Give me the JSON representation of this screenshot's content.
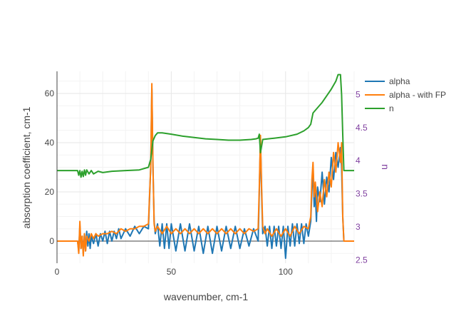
{
  "chart_data": {
    "type": "line",
    "xlabel": "wavenumber, cm-1",
    "ylabel": "absorption coefficient, cm-1",
    "y2label": "n",
    "xlim": [
      0,
      130
    ],
    "ylim": [
      -9,
      69
    ],
    "y2lim": [
      2.45,
      5.35
    ],
    "x_ticks": [
      0,
      50,
      100
    ],
    "y_ticks": [
      0,
      20,
      40,
      60
    ],
    "y2_ticks": [
      2.5,
      3,
      3.5,
      4,
      4.5,
      5
    ],
    "grid": true,
    "legend_position": "top-right",
    "series": [
      {
        "name": "alpha",
        "axis": "y",
        "color": "#1f77b4",
        "points": [
          [
            0,
            0
          ],
          [
            9,
            0
          ],
          [
            9.5,
            -4
          ],
          [
            10,
            6
          ],
          [
            10.5,
            -3
          ],
          [
            11,
            2
          ],
          [
            11.5,
            -5
          ],
          [
            12,
            3
          ],
          [
            12.5,
            -4
          ],
          [
            13,
            4
          ],
          [
            13.5,
            -2
          ],
          [
            14,
            3
          ],
          [
            14.5,
            -3
          ],
          [
            15,
            2
          ],
          [
            16,
            -1
          ],
          [
            17,
            3
          ],
          [
            18,
            -2
          ],
          [
            19,
            3
          ],
          [
            20,
            0
          ],
          [
            21,
            4
          ],
          [
            22,
            -1
          ],
          [
            23,
            4
          ],
          [
            24,
            0
          ],
          [
            25,
            4
          ],
          [
            26,
            1
          ],
          [
            27,
            5
          ],
          [
            28,
            1
          ],
          [
            30,
            5
          ],
          [
            32,
            2
          ],
          [
            34,
            6
          ],
          [
            36,
            3
          ],
          [
            38,
            6
          ],
          [
            40,
            5
          ],
          [
            41,
            30
          ],
          [
            41.5,
            62
          ],
          [
            42,
            30
          ],
          [
            42.5,
            8
          ],
          [
            43,
            3
          ],
          [
            44,
            7
          ],
          [
            45,
            -2
          ],
          [
            46,
            7
          ],
          [
            47,
            -3
          ],
          [
            48,
            7
          ],
          [
            49,
            -3
          ],
          [
            50,
            7
          ],
          [
            52,
            -4
          ],
          [
            54,
            7
          ],
          [
            56,
            -4
          ],
          [
            58,
            7
          ],
          [
            60,
            -4
          ],
          [
            62,
            6
          ],
          [
            64,
            -5
          ],
          [
            66,
            6
          ],
          [
            68,
            -5
          ],
          [
            70,
            6
          ],
          [
            72,
            -4
          ],
          [
            74,
            6
          ],
          [
            76,
            -3
          ],
          [
            78,
            6
          ],
          [
            80,
            -3
          ],
          [
            82,
            5
          ],
          [
            84,
            -2
          ],
          [
            86,
            5
          ],
          [
            88,
            0
          ],
          [
            88.5,
            20
          ],
          [
            89,
            41
          ],
          [
            89.5,
            20
          ],
          [
            90,
            3
          ],
          [
            91,
            6
          ],
          [
            92,
            -2
          ],
          [
            93,
            6
          ],
          [
            94,
            -3
          ],
          [
            95,
            6
          ],
          [
            96,
            -2
          ],
          [
            97,
            6
          ],
          [
            98,
            -3
          ],
          [
            99,
            6
          ],
          [
            100,
            -7
          ],
          [
            101,
            6
          ],
          [
            102,
            -2
          ],
          [
            103,
            7
          ],
          [
            104,
            -2
          ],
          [
            105,
            7
          ],
          [
            106,
            -1
          ],
          [
            107,
            7
          ],
          [
            108,
            -1
          ],
          [
            109,
            7
          ],
          [
            110,
            2
          ],
          [
            111,
            8
          ],
          [
            111.5,
            20
          ],
          [
            112,
            30
          ],
          [
            112.5,
            14
          ],
          [
            113,
            20
          ],
          [
            113.5,
            8
          ],
          [
            114,
            22
          ],
          [
            115,
            16
          ],
          [
            116,
            28
          ],
          [
            117,
            15
          ],
          [
            118,
            26
          ],
          [
            119,
            20
          ],
          [
            120,
            34
          ],
          [
            121,
            25
          ],
          [
            122,
            36
          ],
          [
            123,
            30
          ],
          [
            124,
            38
          ],
          [
            124.5,
            30
          ],
          [
            125,
            10
          ],
          [
            125.5,
            0
          ],
          [
            130,
            0
          ]
        ]
      },
      {
        "name": "alpha - with FP",
        "axis": "y",
        "color": "#ff7f0e",
        "points": [
          [
            0,
            0
          ],
          [
            9,
            0
          ],
          [
            9.5,
            -5
          ],
          [
            10,
            8
          ],
          [
            10.5,
            -3
          ],
          [
            11,
            2
          ],
          [
            11.5,
            -6
          ],
          [
            12,
            3
          ],
          [
            12.5,
            -4
          ],
          [
            13,
            2
          ],
          [
            14,
            0
          ],
          [
            15,
            3
          ],
          [
            16,
            1
          ],
          [
            17,
            3
          ],
          [
            18,
            2
          ],
          [
            20,
            3
          ],
          [
            22,
            3
          ],
          [
            24,
            4
          ],
          [
            26,
            3
          ],
          [
            28,
            5
          ],
          [
            30,
            4
          ],
          [
            32,
            5
          ],
          [
            34,
            5
          ],
          [
            36,
            6
          ],
          [
            38,
            6
          ],
          [
            40,
            7
          ],
          [
            41,
            30
          ],
          [
            41.5,
            64
          ],
          [
            42,
            30
          ],
          [
            42.5,
            7
          ],
          [
            43,
            4
          ],
          [
            44,
            6
          ],
          [
            46,
            3
          ],
          [
            48,
            6
          ],
          [
            50,
            3
          ],
          [
            52,
            5
          ],
          [
            54,
            3
          ],
          [
            56,
            5
          ],
          [
            58,
            3
          ],
          [
            60,
            5
          ],
          [
            62,
            3
          ],
          [
            64,
            5
          ],
          [
            66,
            3
          ],
          [
            68,
            5
          ],
          [
            70,
            3
          ],
          [
            72,
            5
          ],
          [
            74,
            3
          ],
          [
            76,
            5
          ],
          [
            78,
            3
          ],
          [
            80,
            5
          ],
          [
            82,
            3
          ],
          [
            84,
            5
          ],
          [
            86,
            4
          ],
          [
            88,
            5
          ],
          [
            88.5,
            22
          ],
          [
            89,
            43
          ],
          [
            89.5,
            22
          ],
          [
            90,
            6
          ],
          [
            91,
            3
          ],
          [
            92,
            5
          ],
          [
            94,
            2
          ],
          [
            96,
            5
          ],
          [
            98,
            2
          ],
          [
            100,
            5
          ],
          [
            102,
            2
          ],
          [
            104,
            6
          ],
          [
            106,
            3
          ],
          [
            108,
            6
          ],
          [
            110,
            5
          ],
          [
            111,
            10
          ],
          [
            111.5,
            25
          ],
          [
            112,
            32
          ],
          [
            112.5,
            18
          ],
          [
            113,
            24
          ],
          [
            114,
            12
          ],
          [
            115,
            20
          ],
          [
            116,
            14
          ],
          [
            117,
            25
          ],
          [
            118,
            18
          ],
          [
            119,
            28
          ],
          [
            120,
            22
          ],
          [
            121,
            36
          ],
          [
            122,
            28
          ],
          [
            123,
            40
          ],
          [
            124,
            32
          ],
          [
            124.5,
            40
          ],
          [
            125,
            10
          ],
          [
            125.5,
            0
          ],
          [
            130,
            0
          ]
        ]
      },
      {
        "name": "n",
        "axis": "y2",
        "color": "#2ca02c",
        "points": [
          [
            0,
            3.85
          ],
          [
            9,
            3.85
          ],
          [
            9.5,
            3.78
          ],
          [
            10,
            3.85
          ],
          [
            10.5,
            3.75
          ],
          [
            11,
            3.84
          ],
          [
            11.5,
            3.76
          ],
          [
            12,
            3.86
          ],
          [
            12.5,
            3.78
          ],
          [
            13,
            3.86
          ],
          [
            14,
            3.8
          ],
          [
            15,
            3.85
          ],
          [
            16,
            3.8
          ],
          [
            18,
            3.84
          ],
          [
            20,
            3.82
          ],
          [
            24,
            3.84
          ],
          [
            30,
            3.85
          ],
          [
            36,
            3.86
          ],
          [
            40,
            3.9
          ],
          [
            41,
            4.02
          ],
          [
            42,
            4.3
          ],
          [
            43,
            4.38
          ],
          [
            44,
            4.42
          ],
          [
            46,
            4.42
          ],
          [
            50,
            4.4
          ],
          [
            55,
            4.37
          ],
          [
            60,
            4.35
          ],
          [
            65,
            4.33
          ],
          [
            70,
            4.32
          ],
          [
            75,
            4.31
          ],
          [
            80,
            4.31
          ],
          [
            85,
            4.32
          ],
          [
            87,
            4.33
          ],
          [
            88,
            4.34
          ],
          [
            88.5,
            4.4
          ],
          [
            89,
            4.12
          ],
          [
            90,
            4.32
          ],
          [
            95,
            4.34
          ],
          [
            100,
            4.36
          ],
          [
            105,
            4.4
          ],
          [
            108,
            4.45
          ],
          [
            110,
            4.5
          ],
          [
            111,
            4.55
          ],
          [
            112,
            4.72
          ],
          [
            114,
            4.8
          ],
          [
            116,
            4.88
          ],
          [
            118,
            4.98
          ],
          [
            120,
            5.08
          ],
          [
            122,
            5.2
          ],
          [
            123,
            5.3
          ],
          [
            124,
            5.3
          ],
          [
            124.5,
            5.0
          ],
          [
            125,
            4.4
          ],
          [
            125.5,
            3.85
          ],
          [
            130,
            3.85
          ]
        ]
      }
    ]
  }
}
